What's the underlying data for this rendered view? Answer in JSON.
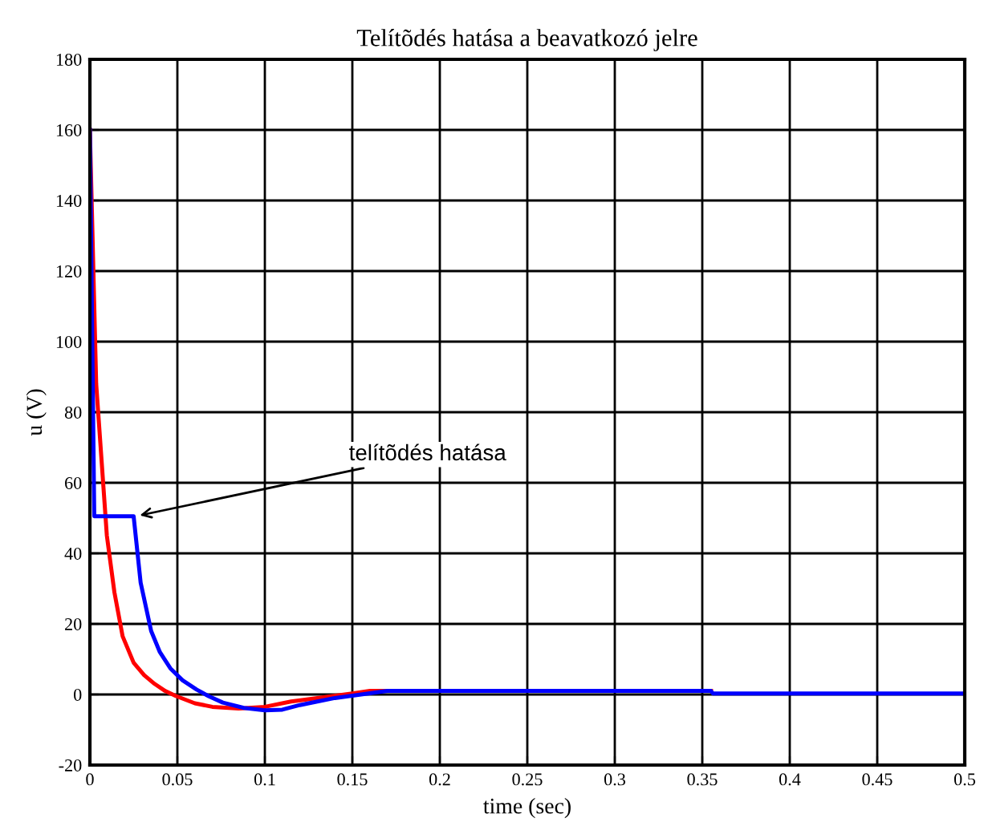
{
  "chart_data": {
    "type": "line",
    "title": "Telítõdés hatása a beavatkozó jelre",
    "xlabel": "time (sec)",
    "ylabel": "u (V)",
    "xlim": [
      0,
      0.5
    ],
    "xticks": [
      0,
      0.05,
      0.1,
      0.15,
      0.2,
      0.25,
      0.3,
      0.35,
      0.4,
      0.45,
      0.5
    ],
    "ylim": [
      -20,
      180
    ],
    "yticks": [
      -20,
      0,
      20,
      40,
      60,
      80,
      100,
      120,
      140,
      160,
      180
    ],
    "grid": true,
    "legend": false,
    "series": [
      {
        "color": "#ff0000",
        "x": [
          0,
          0.0036,
          0.0097,
          0.014,
          0.0187,
          0.025,
          0.031,
          0.037,
          0.043,
          0.049,
          0.06,
          0.07,
          0.085,
          0.1,
          0.115,
          0.13,
          0.15,
          0.16,
          0.355
        ],
        "values": [
          160,
          88,
          45,
          29,
          16.5,
          9,
          5.5,
          3,
          1,
          -0.4,
          -2.5,
          -3.5,
          -4,
          -3.5,
          -2,
          -1,
          0.3,
          1,
          1
        ]
      },
      {
        "color": "#0000ff",
        "x": [
          0,
          0.0025,
          0.025,
          0.029,
          0.035,
          0.04,
          0.046,
          0.053,
          0.061,
          0.068,
          0.076,
          0.088,
          0.1,
          0.11,
          0.12,
          0.13,
          0.14,
          0.155,
          0.17,
          0.355,
          0.356,
          0.5
        ],
        "values": [
          160,
          50.5,
          50.5,
          31.7,
          18,
          12,
          7.4,
          4,
          1.4,
          -0.5,
          -2.3,
          -3.8,
          -4.5,
          -4.3,
          -3,
          -2,
          -1,
          0,
          1,
          1,
          0.3,
          0.3
        ]
      }
    ],
    "annotations": [
      {
        "text": "telítõdés hatása",
        "x": 0.026,
        "y": 50.5
      }
    ]
  }
}
